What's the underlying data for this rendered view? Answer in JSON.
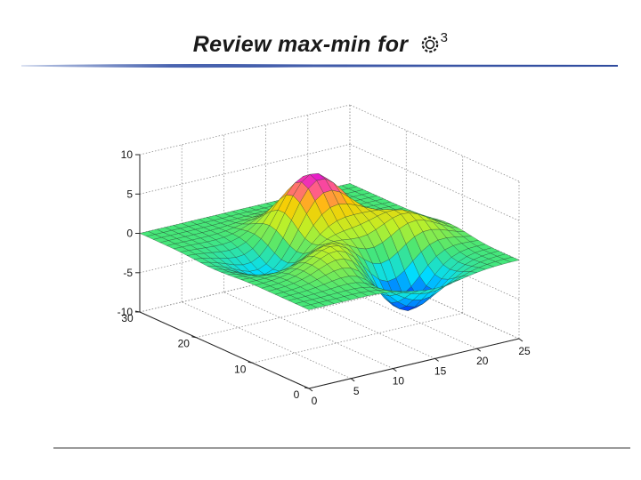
{
  "slide": {
    "title": "Review max-min for",
    "title_symbol": "gear-like R symbol",
    "title_superscript": "3"
  },
  "chart_data": {
    "type": "surface3d",
    "title": "",
    "xlabel": "",
    "ylabel": "",
    "zlabel": "",
    "xlim": [
      0,
      25
    ],
    "ylim": [
      0,
      30
    ],
    "zlim": [
      -10,
      10
    ],
    "grid": true,
    "colormap": "jet",
    "surface_color_range": [
      -8,
      8
    ],
    "x_ticks": [
      "0",
      "5",
      "10",
      "15",
      "20",
      "25"
    ],
    "y_ticks": [
      "0",
      "10",
      "20",
      "30"
    ],
    "z_ticks": [
      "10",
      "5",
      "0",
      "-5",
      "-10"
    ],
    "features": [
      {
        "kind": "peak",
        "x": 13,
        "y": 19,
        "z": 8.1
      },
      {
        "kind": "peak",
        "x": 19,
        "y": 12,
        "z": 3.8
      },
      {
        "kind": "peak",
        "x": 10,
        "y": 9,
        "z": 3.6
      },
      {
        "kind": "valley",
        "x": 15,
        "y": 6,
        "z": -6.5
      },
      {
        "kind": "valley",
        "x": 7,
        "y": 17,
        "z": -3.3
      }
    ]
  }
}
